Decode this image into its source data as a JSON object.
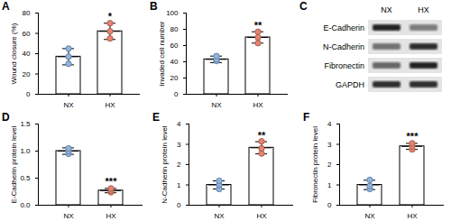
{
  "chart_data": [
    {
      "panel_label": "A",
      "type": "bar",
      "y_label": "Wound closure (%)",
      "categories": [
        "NX",
        "HX"
      ],
      "values": [
        37,
        62
      ],
      "error": [
        8,
        8
      ],
      "points": [
        [
          30,
          37,
          45
        ],
        [
          55,
          62,
          70
        ]
      ],
      "colors": [
        "#8fb4e3",
        "#e8836f"
      ],
      "ylim": [
        0,
        80
      ],
      "yticks": [
        0,
        20,
        40,
        60,
        80
      ],
      "annotations": [
        {
          "category": "HX",
          "text": "*"
        }
      ]
    },
    {
      "panel_label": "B",
      "type": "bar",
      "y_label": "Invaded cell number",
      "categories": [
        "NX",
        "HX"
      ],
      "values": [
        43,
        70
      ],
      "error": [
        4,
        7
      ],
      "points": [
        [
          41,
          43,
          47
        ],
        [
          63,
          70,
          77
        ]
      ],
      "colors": [
        "#8fb4e3",
        "#e8836f"
      ],
      "ylim": [
        0,
        100
      ],
      "yticks": [
        0,
        20,
        40,
        60,
        80,
        100
      ],
      "annotations": [
        {
          "category": "HX",
          "text": "**"
        }
      ]
    },
    {
      "panel_label": "D",
      "type": "bar",
      "y_label": "E-Cadherin protein level",
      "categories": [
        "NX",
        "HX"
      ],
      "values": [
        1.0,
        0.27
      ],
      "error": [
        0.06,
        0.04
      ],
      "points": [
        [
          0.95,
          1.0,
          1.05
        ],
        [
          0.24,
          0.27,
          0.31
        ]
      ],
      "colors": [
        "#8fb4e3",
        "#e8836f"
      ],
      "ylim": [
        0,
        1.5
      ],
      "yticks": [
        {
          "value": 0,
          "label": "0.0"
        },
        {
          "value": 0.5,
          "label": "0.5"
        },
        {
          "value": 1,
          "label": "1.0"
        },
        {
          "value": 1.5,
          "label": "1.5"
        }
      ],
      "annotations": [
        {
          "category": "HX",
          "text": "***"
        }
      ]
    },
    {
      "panel_label": "E",
      "type": "bar",
      "y_label": "N-Cadherin protein level",
      "categories": [
        "NX",
        "HX"
      ],
      "values": [
        1.0,
        2.83
      ],
      "error": [
        0.2,
        0.3
      ],
      "points": [
        [
          0.8,
          1.0,
          1.2
        ],
        [
          2.55,
          2.8,
          3.15
        ]
      ],
      "colors": [
        "#8fb4e3",
        "#e8836f"
      ],
      "ylim": [
        0,
        4
      ],
      "yticks": [
        0,
        1,
        2,
        3,
        4
      ],
      "annotations": [
        {
          "category": "HX",
          "text": "**"
        }
      ]
    },
    {
      "panel_label": "F",
      "type": "bar",
      "y_label": "Fibronectin protein level",
      "categories": [
        "NX",
        "HX"
      ],
      "values": [
        1.0,
        2.9
      ],
      "error": [
        0.23,
        0.15
      ],
      "points": [
        [
          0.8,
          0.95,
          1.25
        ],
        [
          2.75,
          2.9,
          3.05
        ]
      ],
      "colors": [
        "#8fb4e3",
        "#e8836f"
      ],
      "ylim": [
        0,
        4
      ],
      "yticks": [
        0,
        1,
        2,
        3,
        4
      ],
      "annotations": [
        {
          "category": "HX",
          "text": "***"
        }
      ]
    }
  ],
  "blot": {
    "panel_label": "C",
    "columns": [
      "NX",
      "HX"
    ],
    "rows": [
      {
        "label": "E-Cadherin",
        "intensity": [
          0.9,
          0.5
        ]
      },
      {
        "label": "N-Cadherin",
        "intensity": [
          0.55,
          0.85
        ]
      },
      {
        "label": "Fibronectin",
        "intensity": [
          0.6,
          0.9
        ]
      },
      {
        "label": "GAPDH",
        "intensity": [
          0.85,
          0.85
        ]
      }
    ]
  }
}
